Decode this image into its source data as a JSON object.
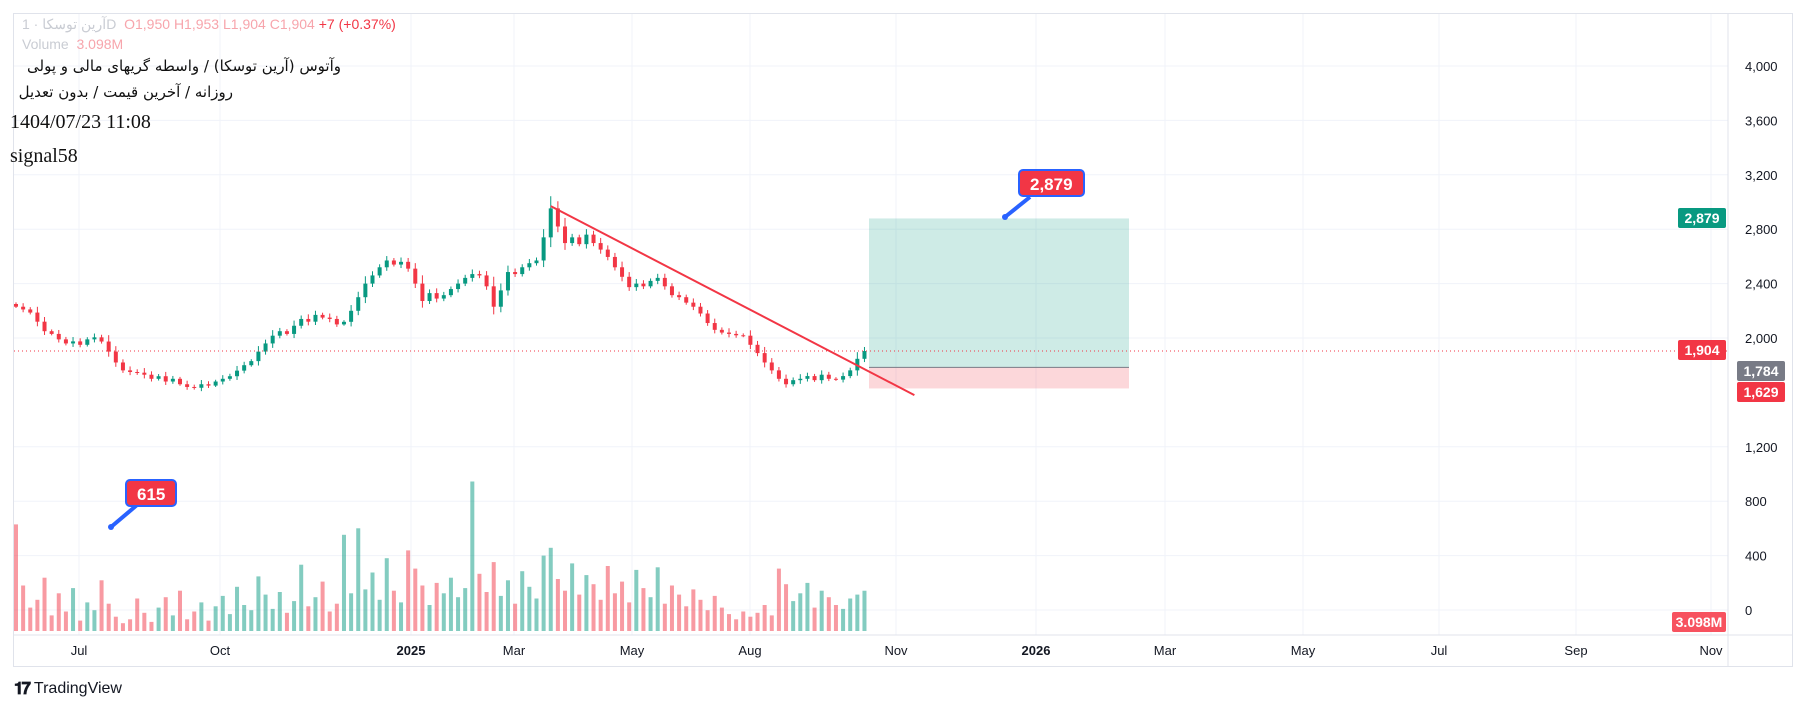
{
  "header": {
    "symbol_line": "وآتوس (آرین توسکا) / واسطه گریهای مالی و پولی",
    "settings_line": "روزانه / آخرین قیمت / بدون تعدیل",
    "datetime": "1404/07/23 11:08",
    "author": "signal58",
    "ohlc": {
      "symbol_faded": "آرین توسکا · 1D",
      "open": "O1,950",
      "high": "H1,953",
      "low": "L1,904",
      "close": "C1,904",
      "change": "+7 (+0.37%)"
    },
    "volume_label": "Volume",
    "volume_value": "3.098M"
  },
  "footer": {
    "brand": "TradingView",
    "logo_text": "TV"
  },
  "colors": {
    "up": "#089981",
    "down": "#f23645",
    "target": "#089981",
    "stop": "#f23645",
    "trend": "#f23645",
    "neutral": "#787b86",
    "callout_border": "#2962ff"
  },
  "chart_data": {
    "type": "candlestick",
    "yaxis_ticks": [
      "4,000",
      "3,600",
      "3,200",
      "2,800",
      "2,400",
      "2,000",
      "1,200",
      "800",
      "400",
      "0"
    ],
    "yaxis_tick_values": [
      4000,
      3600,
      3200,
      2800,
      2400,
      2000,
      1200,
      800,
      400,
      0
    ],
    "xaxis_ticks": [
      "Jul",
      "Oct",
      "2025",
      "Mar",
      "May",
      "Aug",
      "Nov",
      "2026",
      "Mar",
      "May",
      "Jul",
      "Sep",
      "Nov"
    ],
    "xaxis_bold": [
      "2025",
      "2026"
    ],
    "closes": [
      2230,
      2210,
      2187,
      2120,
      2050,
      2030,
      1990,
      1960,
      1975,
      1950,
      1990,
      2005,
      1974,
      1900,
      1820,
      1762,
      1750,
      1745,
      1730,
      1700,
      1719,
      1680,
      1700,
      1660,
      1640,
      1634,
      1660,
      1650,
      1680,
      1700,
      1719,
      1760,
      1800,
      1830,
      1900,
      1960,
      2017,
      2050,
      2030,
      2090,
      2140,
      2120,
      2170,
      2150,
      2140,
      2100,
      2119,
      2200,
      2300,
      2400,
      2460,
      2520,
      2570,
      2540,
      2560,
      2510,
      2400,
      2272,
      2330,
      2290,
      2315,
      2360,
      2400,
      2442,
      2470,
      2460,
      2380,
      2230,
      2350,
      2485,
      2470,
      2520,
      2550,
      2570,
      2740,
      2953,
      2820,
      2698,
      2740,
      2690,
      2760,
      2698,
      2650,
      2596,
      2520,
      2450,
      2374,
      2400,
      2380,
      2420,
      2442,
      2380,
      2315,
      2300,
      2260,
      2230,
      2180,
      2110,
      2060,
      2040,
      2030,
      2020,
      2017,
      1950,
      1889,
      1820,
      1762,
      1700,
      1660,
      1690,
      1700,
      1720,
      1690,
      1730,
      1700,
      1694,
      1720,
      1762,
      1847,
      1904
    ],
    "volumes_m": [
      8.2,
      3.5,
      1.8,
      2.4,
      4.1,
      1.2,
      2.9,
      1.5,
      3.3,
      0.8,
      2.2,
      1.6,
      3.9,
      2.1,
      1.1,
      0.6,
      0.9,
      2.5,
      1.4,
      0.7,
      1.8,
      2.6,
      1.2,
      3.1,
      0.9,
      1.5,
      2.2,
      0.8,
      1.9,
      2.7,
      1.3,
      3.4,
      2.0,
      1.6,
      4.2,
      2.8,
      1.7,
      3.0,
      1.4,
      2.3,
      5.1,
      1.9,
      2.6,
      3.8,
      1.5,
      2.1,
      7.4,
      2.9,
      7.9,
      3.2,
      4.5,
      2.4,
      5.6,
      3.1,
      2.2,
      6.2,
      4.8,
      3.5,
      2.0,
      3.7,
      2.9,
      4.1,
      2.6,
      3.3,
      11.5,
      4.4,
      3.0,
      5.3,
      2.7,
      3.9,
      2.1,
      4.6,
      3.4,
      2.5,
      5.8,
      6.4,
      4.0,
      3.1,
      5.2,
      2.8,
      4.3,
      3.6,
      2.4,
      5.0,
      2.9,
      3.8,
      2.2,
      4.7,
      3.3,
      2.6,
      4.9,
      2.1,
      3.5,
      2.8,
      1.9,
      3.2,
      2.4,
      1.6,
      2.7,
      1.8,
      1.3,
      0.9,
      1.5,
      1.1,
      1.4,
      2.0,
      1.2,
      4.8,
      3.6,
      2.3,
      2.9,
      3.7,
      1.8,
      3.1,
      2.6,
      2.0,
      1.7,
      2.5,
      2.8,
      3.098
    ],
    "current_price": 1904,
    "current_price_label": "1,904",
    "volume_label": "3.098M",
    "trendline": {
      "from_index": 75,
      "from_price": 2970,
      "to_index": 126,
      "to_price": 1580
    },
    "position": {
      "target": 2879,
      "entry": 1784,
      "stop": 1629,
      "target_label": "2,879",
      "entry_label": "1,784",
      "stop_label": "1,629"
    },
    "callouts": [
      {
        "text": "2,879"
      },
      {
        "text": "615"
      }
    ]
  }
}
